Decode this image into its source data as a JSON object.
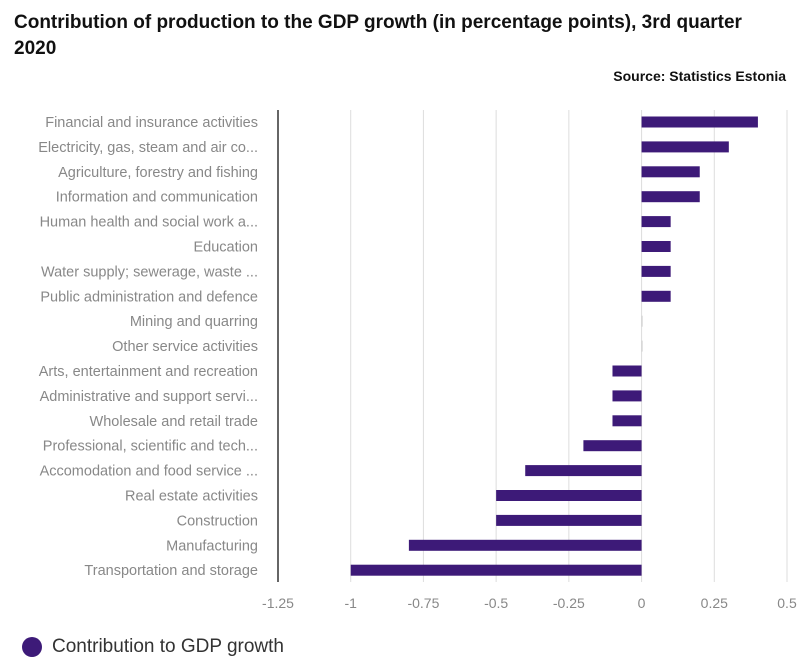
{
  "title": "Contribution of production to the GDP growth (in percentage points), 3rd quarter 2020",
  "source": "Source: Statistics Estonia",
  "legend": {
    "label": "Contribution to GDP growth"
  },
  "colors": {
    "bar": "#3d1a78",
    "axis": "#333333",
    "grid": "#dddddd",
    "tick_text": "#888888"
  },
  "chart_data": {
    "type": "bar",
    "orientation": "horizontal",
    "categories": [
      "Financial and insurance activities",
      "Electricity, gas, steam and air co...",
      "Agriculture, forestry and fishing",
      "Information and communication",
      "Human health and social work a...",
      "Education",
      "Water supply; sewerage, waste ...",
      "Public administration and defence",
      "Mining and quarring",
      "Other service activities",
      "Arts, entertainment and recreation",
      "Administrative and support servi...",
      "Wholesale and retail trade",
      "Professional, scientific and tech...",
      "Accomodation and food service ...",
      "Real estate activities",
      "Construction",
      "Manufacturing",
      "Transportation and storage"
    ],
    "series": [
      {
        "name": "Contribution to GDP growth",
        "values": [
          0.4,
          0.3,
          0.2,
          0.2,
          0.1,
          0.1,
          0.1,
          0.1,
          0,
          0,
          -0.1,
          -0.1,
          -0.1,
          -0.2,
          -0.4,
          -0.5,
          -0.5,
          -0.8,
          -1.0
        ]
      }
    ],
    "xlim": [
      -1.25,
      0.5
    ],
    "xticks": [
      "-1.25",
      "-1",
      "-0.75",
      "-0.5",
      "-0.25",
      "0",
      "0.25",
      "0.5"
    ],
    "xtick_values": [
      -1.25,
      -1,
      -0.75,
      -0.5,
      -0.25,
      0,
      0.25,
      0.5
    ],
    "xlabel": "",
    "ylabel": "",
    "grid": true,
    "legend_position": "bottom-left"
  }
}
